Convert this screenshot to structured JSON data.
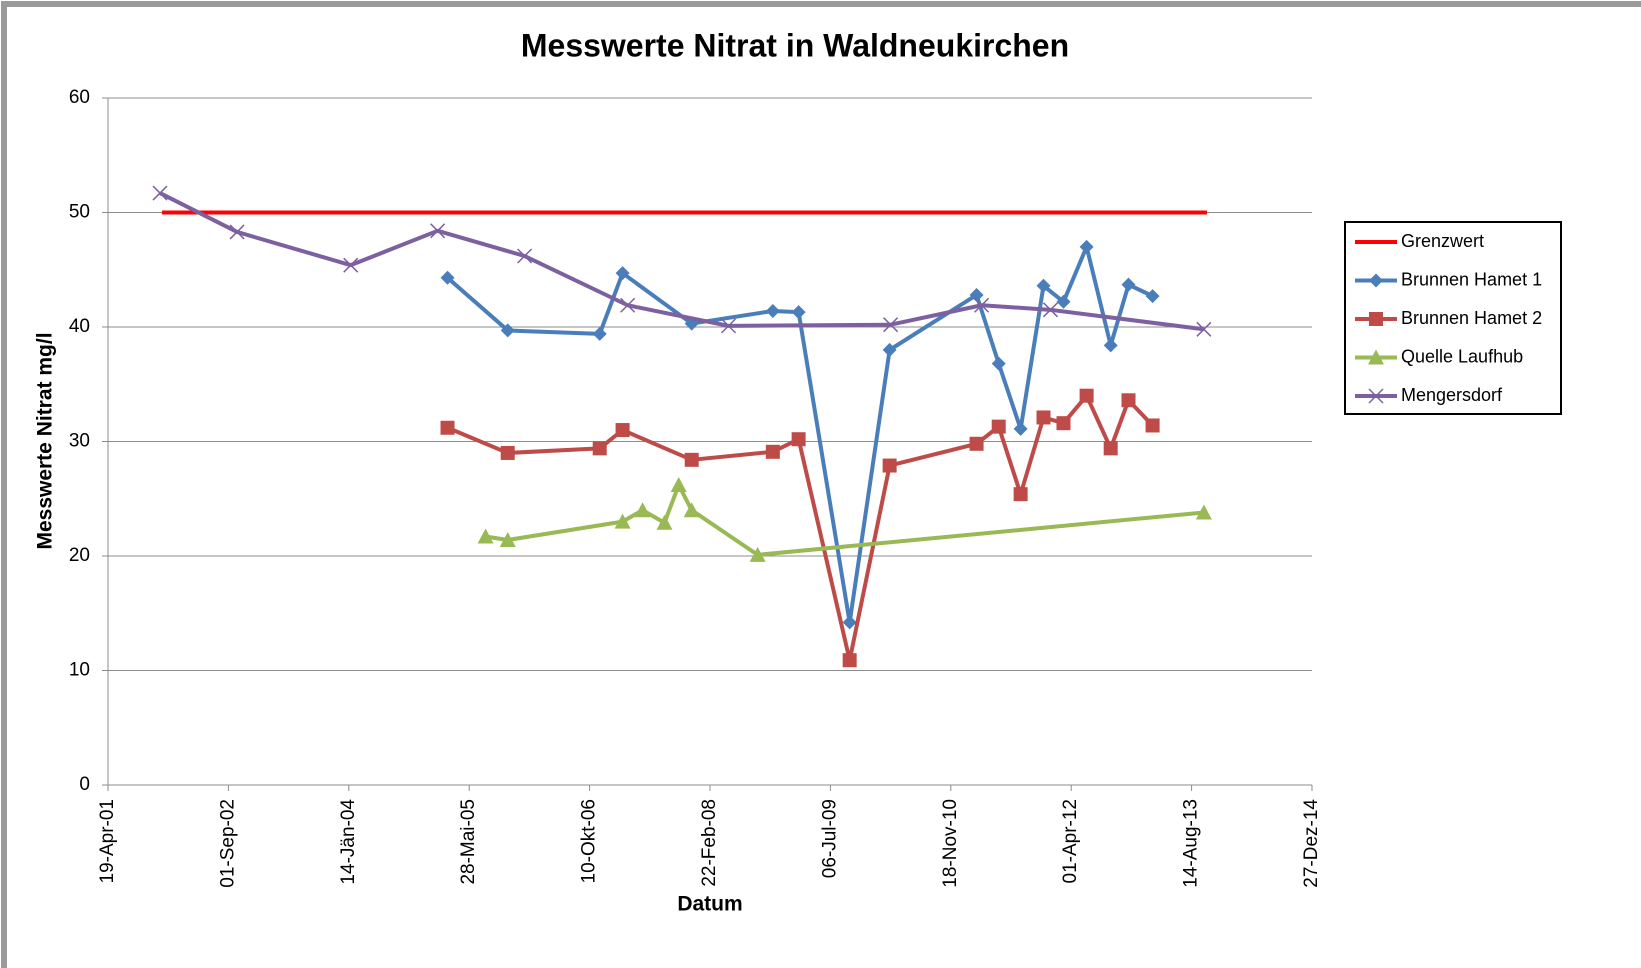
{
  "chart_data": {
    "type": "line",
    "title": "Messwerte Nitrat in Waldneukirchen",
    "xlabel": "Datum",
    "ylabel": "Messwerte Nitrat mg/l",
    "xlim": [
      "2001-04-19",
      "2014-12-27"
    ],
    "xticks": [
      {
        "value": "2001-04-19",
        "label": "19-Apr-01"
      },
      {
        "value": "2002-09-01",
        "label": "01-Sep-02"
      },
      {
        "value": "2004-01-14",
        "label": "14-Jän-04"
      },
      {
        "value": "2005-05-28",
        "label": "28-Mai-05"
      },
      {
        "value": "2006-10-10",
        "label": "10-Okt-06"
      },
      {
        "value": "2008-02-22",
        "label": "22-Feb-08"
      },
      {
        "value": "2009-07-06",
        "label": "06-Jul-09"
      },
      {
        "value": "2010-11-18",
        "label": "18-Nov-10"
      },
      {
        "value": "2012-04-01",
        "label": "01-Apr-12"
      },
      {
        "value": "2013-08-14",
        "label": "14-Aug-13"
      },
      {
        "value": "2014-12-27",
        "label": "27-Dez-14"
      }
    ],
    "ylim": [
      0,
      60
    ],
    "yticks": [
      0,
      10,
      20,
      30,
      40,
      50,
      60
    ],
    "grid": true,
    "legend": "right",
    "series": [
      {
        "name": "Grenzwert",
        "color": "#ff0000",
        "marker": "none",
        "x": [
          "2001-11-29",
          "2013-10-17"
        ],
        "values": [
          50,
          50
        ]
      },
      {
        "name": "Brunnen Hamet 1",
        "color": "#4a7ebb",
        "marker": "diamond",
        "x": [
          "2005-02-27",
          "2005-11-04",
          "2006-11-21",
          "2007-02-24",
          "2007-12-08",
          "2008-11-09",
          "2009-02-24",
          "2009-09-24",
          "2010-03-09",
          "2011-03-05",
          "2011-06-05",
          "2011-09-04",
          "2011-12-08",
          "2012-02-29",
          "2012-06-04",
          "2012-09-12",
          "2012-11-25",
          "2013-03-05"
        ],
        "values": [
          44.3,
          39.7,
          39.4,
          44.7,
          40.3,
          41.4,
          41.3,
          14.2,
          38.0,
          42.8,
          36.8,
          31.1,
          43.6,
          42.2,
          47.0,
          38.4,
          43.7,
          42.7
        ]
      },
      {
        "name": "Brunnen Hamet 2",
        "color": "#be4b48",
        "marker": "square",
        "x": [
          "2005-02-27",
          "2005-11-04",
          "2006-11-21",
          "2007-02-24",
          "2007-12-08",
          "2008-11-09",
          "2009-02-24",
          "2009-09-24",
          "2010-03-09",
          "2011-03-05",
          "2011-06-05",
          "2011-09-04",
          "2011-12-08",
          "2012-02-29",
          "2012-06-04",
          "2012-09-12",
          "2012-11-25",
          "2013-03-05"
        ],
        "values": [
          31.2,
          29.0,
          29.4,
          31.0,
          28.4,
          29.1,
          30.2,
          10.9,
          27.9,
          29.8,
          31.3,
          25.4,
          32.1,
          31.6,
          34.0,
          29.4,
          33.6,
          31.4
        ]
      },
      {
        "name": "Quelle Laufhub",
        "color": "#98b954",
        "marker": "triangle",
        "x": [
          "2005-08-04",
          "2005-11-04",
          "2007-02-24",
          "2007-05-18",
          "2007-08-17",
          "2007-10-15",
          "2007-12-08",
          "2008-09-07",
          "2013-10-04"
        ],
        "values": [
          21.7,
          21.4,
          23.0,
          24.0,
          22.9,
          26.2,
          24.0,
          20.1,
          23.8
        ]
      },
      {
        "name": "Mengersdorf",
        "color": "#7d60a0",
        "marker": "x",
        "x": [
          "2001-11-21",
          "2002-10-07",
          "2004-01-22",
          "2005-01-17",
          "2006-01-13",
          "2007-03-17",
          "2008-05-09",
          "2010-03-13",
          "2011-03-26",
          "2012-01-06",
          "2013-10-04"
        ],
        "values": [
          51.7,
          48.3,
          45.4,
          48.4,
          46.2,
          41.9,
          40.1,
          40.2,
          41.9,
          41.5,
          39.8
        ]
      }
    ]
  }
}
